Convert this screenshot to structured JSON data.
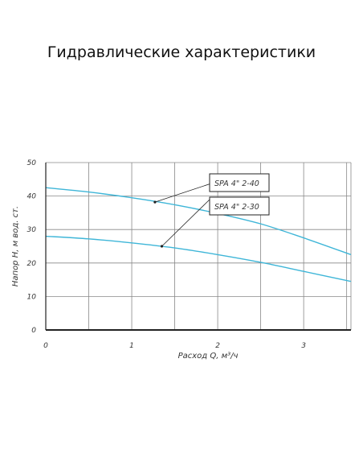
{
  "page": {
    "title": "Гидравлические характеристики"
  },
  "chart_data": {
    "type": "line",
    "xlabel": "Расход Q, м³/ч",
    "ylabel": "Напор H, м вод. ст.",
    "xlim": [
      0,
      3.55
    ],
    "ylim": [
      0,
      50
    ],
    "x_ticks": [
      0,
      1,
      2,
      3
    ],
    "x_tick_labels": [
      "0",
      "1",
      "2",
      "3"
    ],
    "y_ticks": [
      0,
      10,
      20,
      30,
      40,
      50
    ],
    "y_tick_labels": [
      "0",
      "10",
      "20",
      "30",
      "40",
      "50"
    ],
    "grid": true,
    "colors": {
      "series": "#3fb6d8",
      "grid": "#888888",
      "axis": "#222222"
    },
    "series": [
      {
        "name": "SPA 4\" 2-40",
        "x": [
          0,
          0.5,
          1.0,
          1.5,
          2.0,
          2.5,
          3.0,
          3.55
        ],
        "y": [
          42.5,
          41.2,
          39.5,
          37.4,
          34.8,
          31.7,
          27.5,
          22.5
        ]
      },
      {
        "name": "SPA 4\" 2-30",
        "x": [
          0,
          0.5,
          1.0,
          1.5,
          2.0,
          2.5,
          3.0,
          3.55
        ],
        "y": [
          28.0,
          27.2,
          26.0,
          24.5,
          22.5,
          20.2,
          17.5,
          14.5
        ]
      }
    ],
    "annotations": [
      {
        "label": "SPA 4\" 2-40",
        "point": [
          1.27,
          38.2
        ]
      },
      {
        "label": "SPA 4\" 2-30",
        "point": [
          1.35,
          25.0
        ]
      }
    ]
  }
}
